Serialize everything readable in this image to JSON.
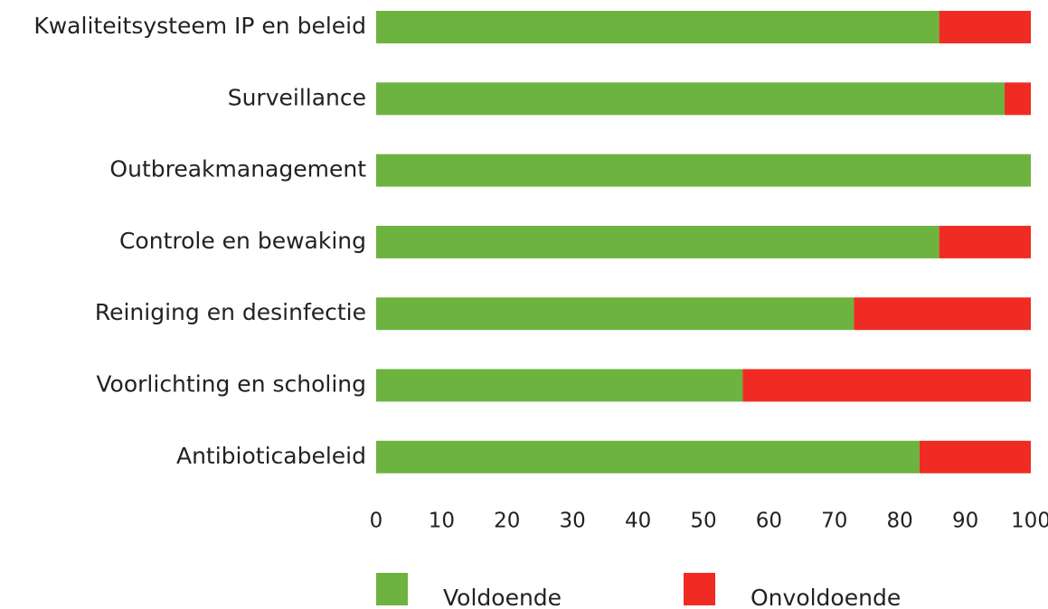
{
  "chart_data": {
    "type": "stacked_barh",
    "categories": [
      "Kwaliteitsysteem IP en beleid",
      "Surveillance",
      "Outbreakmanagement",
      "Controle en bewaking",
      "Reiniging en desinfectie",
      "Voorlichting en scholing",
      "Antibioticabeleid"
    ],
    "series": [
      {
        "name": "Voldoende",
        "color": "#6db33f",
        "values": [
          86,
          96,
          100,
          86,
          73,
          56,
          83
        ]
      },
      {
        "name": "Onvoldoende",
        "color": "#ef2b24",
        "values": [
          14,
          4,
          0,
          14,
          27,
          44,
          17
        ]
      }
    ],
    "xlim": [
      0,
      100
    ],
    "xticks": [
      0,
      10,
      20,
      30,
      40,
      50,
      60,
      70,
      80,
      90,
      100
    ],
    "grid": false,
    "legend": "bottom"
  }
}
